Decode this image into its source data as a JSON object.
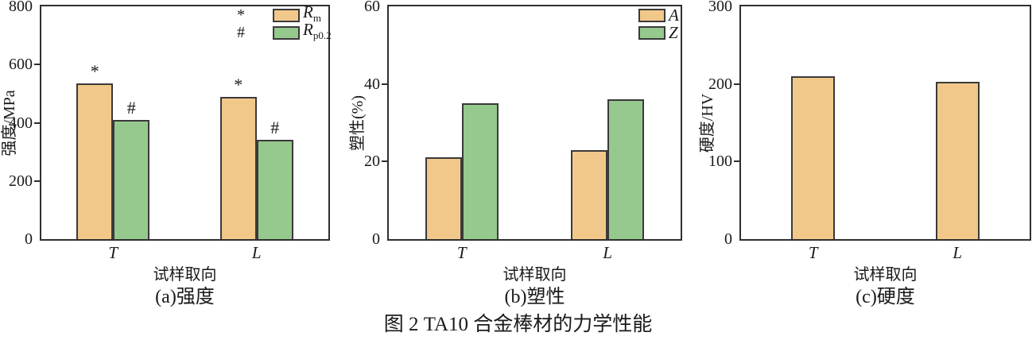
{
  "caption": "图 2 TA10 合金棒材的力学性能",
  "colors": {
    "orange": "#F2C88A",
    "green": "#96C98D",
    "bar_border": "#3a3a3a",
    "axis": "#2f2f2f"
  },
  "chart_data": [
    {
      "type": "bar",
      "subtitle": "(a)强度",
      "ylabel": "强度/MPa",
      "xlabel": "试样取向",
      "ylim": [
        0,
        800
      ],
      "yticks": [
        0,
        200,
        400,
        600,
        800
      ],
      "categories": [
        "T",
        "L"
      ],
      "series": [
        {
          "label": "R",
          "label_sub": "m",
          "marker": "*",
          "color": "orange",
          "values": [
            535,
            490
          ]
        },
        {
          "label": "R",
          "label_sub": "p0.2",
          "marker": "#",
          "color": "green",
          "values": [
            410,
            340
          ]
        }
      ],
      "legend": true,
      "legend_position": "top-right",
      "bar_annotations": true,
      "grid": false
    },
    {
      "type": "bar",
      "subtitle": "(b)塑性",
      "ylabel": "塑性(%)",
      "xlabel": "试样取向",
      "ylim": [
        0,
        60
      ],
      "yticks": [
        0,
        20,
        40,
        60
      ],
      "categories": [
        "T",
        "L"
      ],
      "series": [
        {
          "label": "A",
          "label_sub": "",
          "marker": "",
          "color": "orange",
          "values": [
            21,
            23
          ]
        },
        {
          "label": "Z",
          "label_sub": "",
          "marker": "",
          "color": "green",
          "values": [
            35,
            36
          ]
        }
      ],
      "legend": true,
      "legend_position": "top-right",
      "bar_annotations": false,
      "grid": false
    },
    {
      "type": "bar",
      "subtitle": "(c)硬度",
      "ylabel": "硬度/HV",
      "xlabel": "试样取向",
      "ylim": [
        0,
        300
      ],
      "yticks": [
        0,
        100,
        200,
        300
      ],
      "categories": [
        "T",
        "L"
      ],
      "series": [
        {
          "label": "",
          "label_sub": "",
          "marker": "",
          "color": "orange",
          "values": [
            210,
            203
          ]
        }
      ],
      "legend": false,
      "bar_annotations": false,
      "grid": false
    }
  ]
}
